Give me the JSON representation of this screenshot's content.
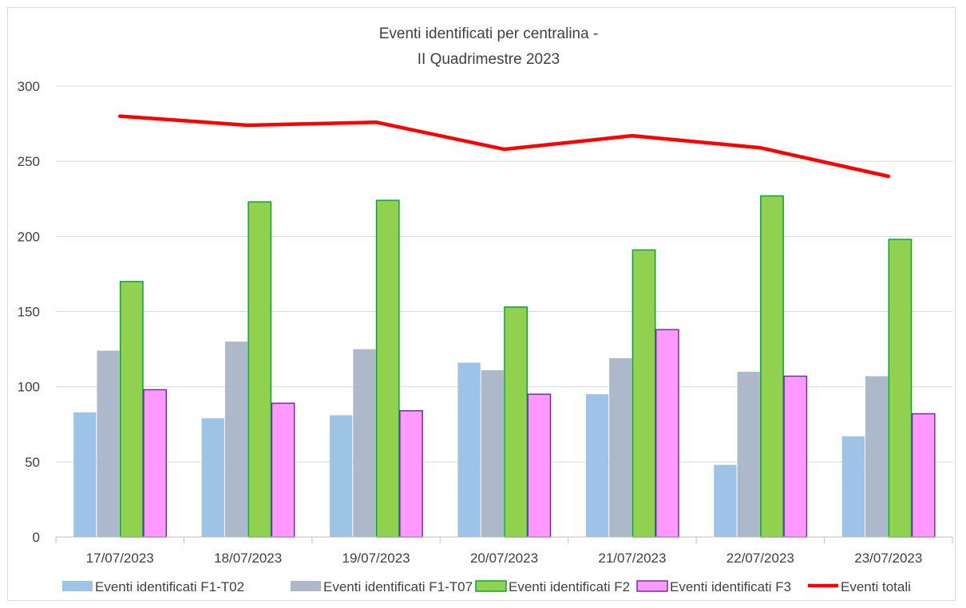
{
  "chart_data": {
    "type": "bar",
    "title": "Eventi identificati per centralina -",
    "subtitle": "II Quadrimestre 2023",
    "xlabel": "",
    "ylabel": "",
    "ylim": [
      0,
      300
    ],
    "yticks": [
      0,
      50,
      100,
      150,
      200,
      250,
      300
    ],
    "grid": true,
    "legend_position": "bottom",
    "categories": [
      "17/07/2023",
      "18/07/2023",
      "19/07/2023",
      "20/07/2023",
      "21/07/2023",
      "22/07/2023",
      "23/07/2023"
    ],
    "series": [
      {
        "name": "Eventi identificati F1-T02",
        "type": "bar",
        "color": "#9dc3e6",
        "edge": "#9dc3e6",
        "values": [
          83,
          79,
          81,
          116,
          95,
          48,
          67
        ]
      },
      {
        "name": "Eventi identificati F1-T07",
        "type": "bar",
        "color": "#adb9ca",
        "edge": "#adb9ca",
        "values": [
          124,
          130,
          125,
          111,
          119,
          110,
          107
        ]
      },
      {
        "name": "Eventi identificati F2",
        "type": "bar",
        "color": "#92d050",
        "edge": "#00a933",
        "values": [
          170,
          223,
          224,
          153,
          191,
          227,
          198
        ]
      },
      {
        "name": "Eventi identificati F3",
        "type": "bar",
        "color": "#ff99ff",
        "edge": "#7030a0",
        "values": [
          98,
          89,
          84,
          95,
          138,
          107,
          82
        ]
      },
      {
        "name": "Eventi totali",
        "type": "line",
        "color": "#ff0000",
        "values": [
          280,
          274,
          276,
          258,
          267,
          259,
          240
        ]
      }
    ]
  }
}
